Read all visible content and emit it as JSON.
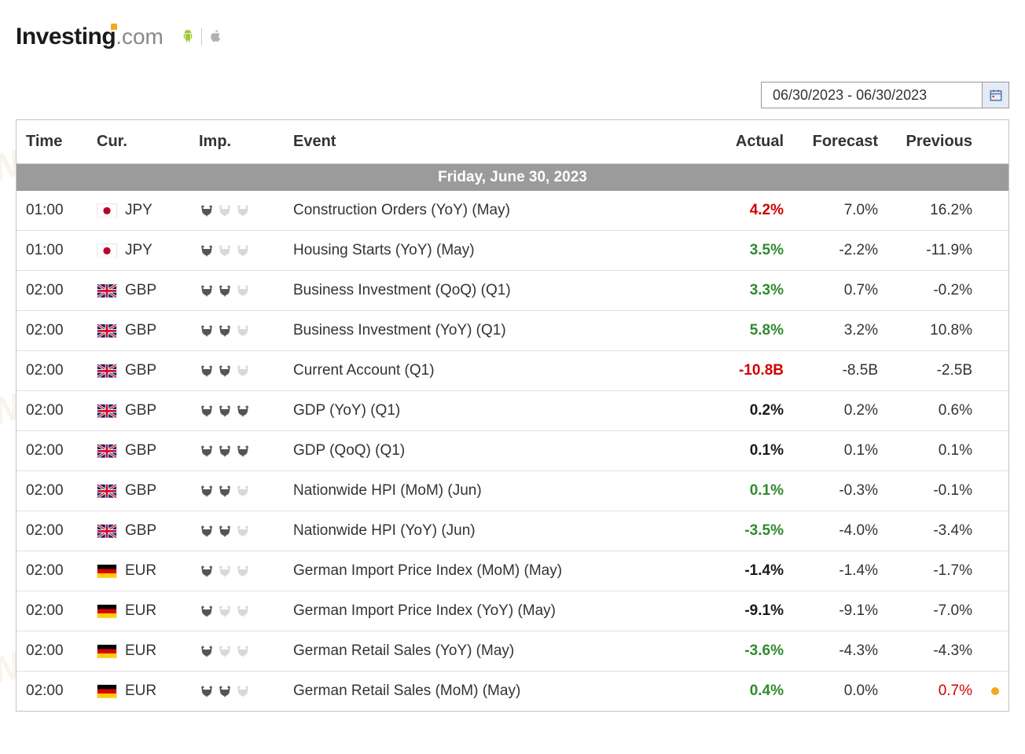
{
  "logo": {
    "investing": "Investing",
    "com": ".com"
  },
  "dateRange": "06/30/2023 - 06/30/2023",
  "columns": {
    "time": "Time",
    "cur": "Cur.",
    "imp": "Imp.",
    "event": "Event",
    "actual": "Actual",
    "forecast": "Forecast",
    "previous": "Previous"
  },
  "dayHeader": "Friday, June 30, 2023",
  "flags": {
    "JPY": {
      "bg": "#ffffff",
      "circle": "#bc002d"
    },
    "GBP": {
      "bg": "#012169"
    },
    "EUR": {
      "stripes": [
        "#000000",
        "#dd0000",
        "#ffce00"
      ]
    }
  },
  "bullColors": {
    "active": "#555555",
    "inactive": "#d8d8d8"
  },
  "valueColors": {
    "green": "#2e8b2e",
    "red": "#d00000",
    "neutral": "#1a1a1a"
  },
  "dotColor": "#f5a623",
  "rows": [
    {
      "time": "01:00",
      "cur": "JPY",
      "imp": 1,
      "event": "Construction Orders (YoY) (May)",
      "actual": "4.2%",
      "actualClass": "red",
      "forecast": "7.0%",
      "previous": "16.2%",
      "dot": false
    },
    {
      "time": "01:00",
      "cur": "JPY",
      "imp": 1,
      "event": "Housing Starts (YoY) (May)",
      "actual": "3.5%",
      "actualClass": "green",
      "forecast": "-2.2%",
      "previous": "-11.9%",
      "dot": false
    },
    {
      "time": "02:00",
      "cur": "GBP",
      "imp": 2,
      "event": "Business Investment (QoQ) (Q1)",
      "actual": "3.3%",
      "actualClass": "green",
      "forecast": "0.7%",
      "previous": "-0.2%",
      "dot": false
    },
    {
      "time": "02:00",
      "cur": "GBP",
      "imp": 2,
      "event": "Business Investment (YoY) (Q1)",
      "actual": "5.8%",
      "actualClass": "green",
      "forecast": "3.2%",
      "previous": "10.8%",
      "dot": false
    },
    {
      "time": "02:00",
      "cur": "GBP",
      "imp": 2,
      "event": "Current Account (Q1)",
      "actual": "-10.8B",
      "actualClass": "red",
      "forecast": "-8.5B",
      "previous": "-2.5B",
      "dot": false
    },
    {
      "time": "02:00",
      "cur": "GBP",
      "imp": 3,
      "event": "GDP (YoY) (Q1)",
      "actual": "0.2%",
      "actualClass": "neutral",
      "forecast": "0.2%",
      "previous": "0.6%",
      "dot": false
    },
    {
      "time": "02:00",
      "cur": "GBP",
      "imp": 3,
      "event": "GDP (QoQ) (Q1)",
      "actual": "0.1%",
      "actualClass": "neutral",
      "forecast": "0.1%",
      "previous": "0.1%",
      "dot": false
    },
    {
      "time": "02:00",
      "cur": "GBP",
      "imp": 2,
      "event": "Nationwide HPI (MoM) (Jun)",
      "actual": "0.1%",
      "actualClass": "green",
      "forecast": "-0.3%",
      "previous": "-0.1%",
      "dot": false
    },
    {
      "time": "02:00",
      "cur": "GBP",
      "imp": 2,
      "event": "Nationwide HPI (YoY) (Jun)",
      "actual": "-3.5%",
      "actualClass": "green",
      "forecast": "-4.0%",
      "previous": "-3.4%",
      "dot": false
    },
    {
      "time": "02:00",
      "cur": "EUR",
      "imp": 1,
      "event": "German Import Price Index (MoM) (May)",
      "actual": "-1.4%",
      "actualClass": "neutral",
      "forecast": "-1.4%",
      "previous": "-1.7%",
      "dot": false
    },
    {
      "time": "02:00",
      "cur": "EUR",
      "imp": 1,
      "event": "German Import Price Index (YoY) (May)",
      "actual": "-9.1%",
      "actualClass": "neutral",
      "forecast": "-9.1%",
      "previous": "-7.0%",
      "dot": false
    },
    {
      "time": "02:00",
      "cur": "EUR",
      "imp": 1,
      "event": "German Retail Sales (YoY) (May)",
      "actual": "-3.6%",
      "actualClass": "green",
      "forecast": "-4.3%",
      "previous": "-4.3%",
      "dot": false
    },
    {
      "time": "02:00",
      "cur": "EUR",
      "imp": 2,
      "event": "German Retail Sales (MoM) (May)",
      "actual": "0.4%",
      "actualClass": "green",
      "forecast": "0.0%",
      "previous": "0.7%",
      "previousClass": "red",
      "dot": true
    }
  ]
}
